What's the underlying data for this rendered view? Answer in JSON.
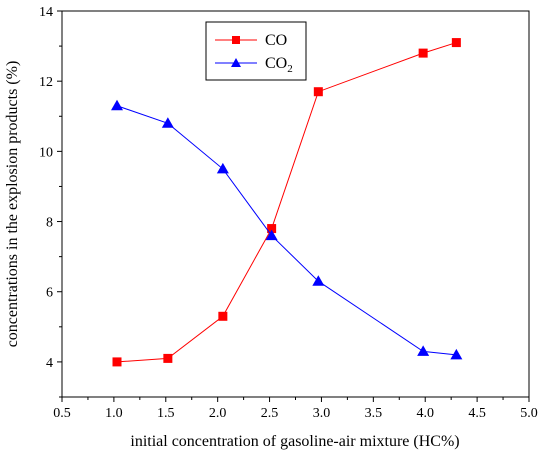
{
  "chart_data": {
    "type": "line",
    "title": "",
    "xlabel": "initial concentration of gasoline-air mixture (HC%)",
    "ylabel": "concentrations in the explosion products (%)",
    "xlim": [
      0.5,
      5.0
    ],
    "ylim": [
      3.0,
      14.0
    ],
    "xticks": [
      "0.5",
      "1.0",
      "1.5",
      "2.0",
      "2.5",
      "3.0",
      "3.5",
      "4.0",
      "4.5",
      "5.0"
    ],
    "yticks": [
      "4",
      "6",
      "8",
      "10",
      "12",
      "14"
    ],
    "grid": false,
    "legend_position": "top-center",
    "series": [
      {
        "name": "CO",
        "marker": "square",
        "color": "#ff0000",
        "x": [
          1.03,
          1.52,
          2.05,
          2.52,
          2.97,
          3.98,
          4.3
        ],
        "y": [
          4.0,
          4.1,
          5.3,
          7.8,
          11.7,
          12.8,
          13.1
        ]
      },
      {
        "name": "CO2",
        "name_main": "CO",
        "name_sub": "2",
        "marker": "triangle",
        "color": "#0000ff",
        "x": [
          1.03,
          1.52,
          2.05,
          2.52,
          2.97,
          3.98,
          4.3
        ],
        "y": [
          11.3,
          10.8,
          9.5,
          7.6,
          6.3,
          4.3,
          4.2
        ]
      }
    ]
  }
}
